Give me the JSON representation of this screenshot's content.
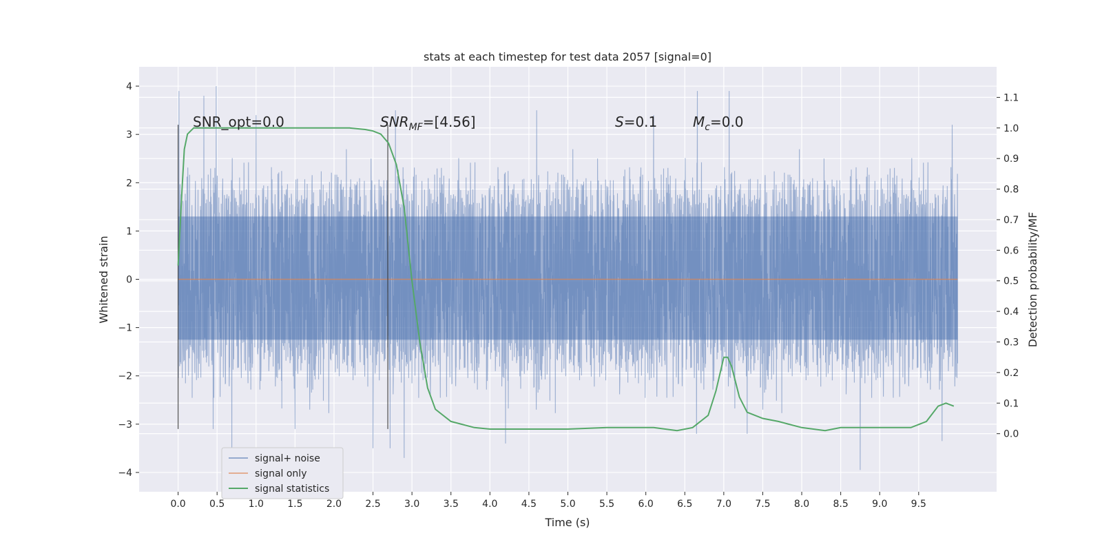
{
  "chart_data": {
    "type": "line",
    "title": "stats at each timestep for test data 2057 [signal=0]",
    "xlabel": "Time (s)",
    "ylabel": "Whitened strain",
    "ylabel_right": "Detection probability/MF",
    "xlim": [
      -0.5,
      10.5
    ],
    "ylim": [
      -4.4,
      4.4
    ],
    "ylim_right": [
      -0.19,
      1.2
    ],
    "x_ticks": [
      "0.0",
      "0.5",
      "1.0",
      "1.5",
      "2.0",
      "2.5",
      "3.0",
      "3.5",
      "4.0",
      "4.5",
      "5.0",
      "5.5",
      "6.0",
      "6.5",
      "7.0",
      "7.5",
      "8.0",
      "8.5",
      "9.0",
      "9.5"
    ],
    "y_ticks": [
      "4",
      "3",
      "2",
      "1",
      "0",
      "−1",
      "−2",
      "−3",
      "−4"
    ],
    "y_ticks_right": [
      "0.0",
      "0.1",
      "0.2",
      "0.3",
      "0.4",
      "0.5",
      "0.6",
      "0.7",
      "0.8",
      "0.9",
      "1.0",
      "1.1"
    ],
    "grid": true,
    "legend_position": "lower-left",
    "annotations": {
      "snr_opt": "SNR_opt=0.0",
      "snr_mf_main": "SNR",
      "snr_mf_sub": "MF",
      "snr_mf_value": "=[4.56]",
      "s_symbol": "S",
      "s_value": "=0.1",
      "mc_symbol": "M",
      "mc_sub": "c",
      "mc_value": "=0.0"
    },
    "series": [
      {
        "name": "signal+ noise",
        "color": "#4c72b0",
        "axis": "left",
        "x_range": [
          0,
          10
        ],
        "band": [
          -1.25,
          1.3
        ],
        "peaks": [
          [
            0.01,
            3.9
          ],
          [
            0.33,
            3.8
          ],
          [
            0.45,
            4.05
          ],
          [
            0.49,
            4.0
          ],
          [
            1.0,
            3.4
          ],
          [
            2.79,
            3.5
          ],
          [
            4.6,
            3.5
          ],
          [
            6.1,
            3.4
          ],
          [
            6.66,
            3.9
          ],
          [
            7.07,
            3.9
          ],
          [
            9.8,
            3.4
          ],
          [
            9.93,
            3.2
          ],
          [
            0.45,
            -3.1
          ],
          [
            0.69,
            -3.5
          ],
          [
            1.5,
            -3.1
          ],
          [
            2.5,
            -3.5
          ],
          [
            2.72,
            -3.5
          ],
          [
            2.9,
            -3.7
          ],
          [
            4.2,
            -3.4
          ],
          [
            6.65,
            -3.2
          ],
          [
            7.3,
            -3.2
          ],
          [
            8.75,
            -3.95
          ],
          [
            9.8,
            -3.35
          ]
        ]
      },
      {
        "name": "signal only",
        "color": "#dd8452",
        "axis": "left",
        "x": [
          0,
          10
        ],
        "y": [
          0,
          0
        ]
      },
      {
        "name": "signal statistics",
        "color": "#55a868",
        "axis": "right",
        "x": [
          0.0,
          0.02,
          0.05,
          0.08,
          0.12,
          0.16,
          0.2,
          0.3,
          0.5,
          1.0,
          1.5,
          2.0,
          2.2,
          2.4,
          2.5,
          2.6,
          2.7,
          2.8,
          2.9,
          3.0,
          3.1,
          3.2,
          3.3,
          3.5,
          3.8,
          4.0,
          4.5,
          5.0,
          5.5,
          5.8,
          6.1,
          6.4,
          6.6,
          6.8,
          6.9,
          7.0,
          7.05,
          7.1,
          7.2,
          7.3,
          7.5,
          7.7,
          8.0,
          8.3,
          8.5,
          9.0,
          9.4,
          9.6,
          9.75,
          9.85,
          9.95
        ],
        "y": [
          0.55,
          0.65,
          0.8,
          0.93,
          0.98,
          0.99,
          1.0,
          1.0,
          1.0,
          1.0,
          1.0,
          1.0,
          1.0,
          0.995,
          0.99,
          0.98,
          0.95,
          0.88,
          0.74,
          0.5,
          0.3,
          0.15,
          0.08,
          0.04,
          0.02,
          0.015,
          0.015,
          0.015,
          0.02,
          0.02,
          0.02,
          0.01,
          0.02,
          0.06,
          0.14,
          0.25,
          0.25,
          0.22,
          0.12,
          0.07,
          0.05,
          0.04,
          0.02,
          0.01,
          0.02,
          0.02,
          0.02,
          0.04,
          0.09,
          0.1,
          0.09
        ]
      }
    ],
    "vertical_lines": [
      {
        "x": 0.0,
        "y": [
          -3.1,
          3.2
        ]
      },
      {
        "x": 2.69,
        "y": [
          -3.1,
          3.2
        ]
      }
    ]
  }
}
